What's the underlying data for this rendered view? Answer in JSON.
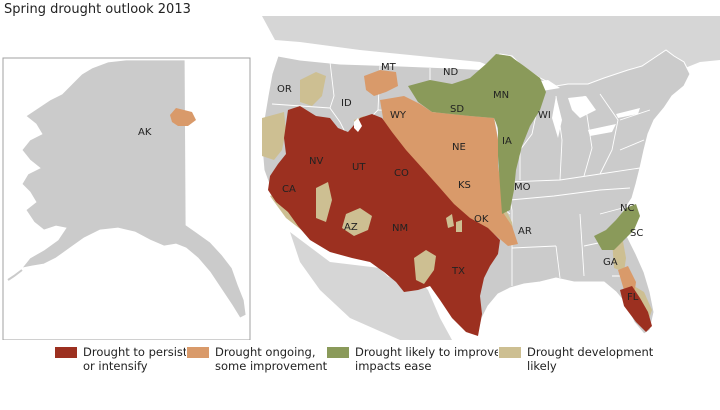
{
  "title": "Spring drought outlook 2013",
  "colors": {
    "persist": "#9c3020",
    "ongoing": "#d99a6a",
    "improve": "#8a9a5a",
    "development": "#cdbf92",
    "land": "#cbcbcb",
    "border": "#ffffff",
    "inset_frame": "#a0a0a0"
  },
  "state_labels": [
    "OR",
    "ID",
    "MT",
    "ND",
    "MN",
    "WI",
    "WY",
    "SD",
    "NE",
    "IA",
    "NV",
    "UT",
    "CO",
    "KS",
    "MO",
    "CA",
    "AZ",
    "NM",
    "OK",
    "AR",
    "NC",
    "SC",
    "TX",
    "GA",
    "FL",
    "AK"
  ],
  "legend": [
    {
      "key": "persist",
      "line1": "Drought to persist",
      "line2": "or intensify"
    },
    {
      "key": "ongoing",
      "line1": "Drought ongoing,",
      "line2": "some improvement"
    },
    {
      "key": "improve",
      "line1": "Drought likely to improve,",
      "line2": "impacts ease"
    },
    {
      "key": "development",
      "line1": "Drought development",
      "line2": "likely"
    }
  ]
}
